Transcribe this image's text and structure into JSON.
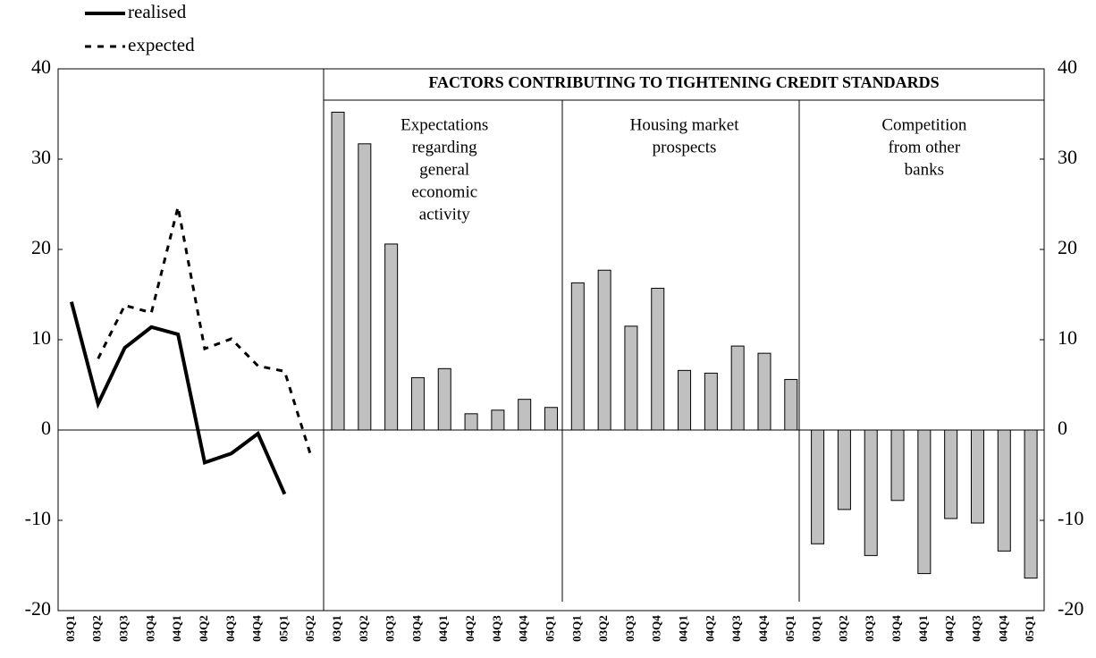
{
  "chart_data": [
    {
      "type": "line",
      "categories": [
        "03Q1",
        "03Q2",
        "03Q3",
        "03Q4",
        "04Q1",
        "04Q2",
        "04Q3",
        "04Q4",
        "05Q1",
        "05Q2"
      ],
      "series": [
        {
          "name": "realised",
          "color": "#000000",
          "dash": false,
          "values": [
            14.2,
            2.9,
            9.1,
            11.4,
            10.6,
            -3.6,
            -2.6,
            -0.4,
            -7.1,
            null
          ]
        },
        {
          "name": "expected",
          "color": "#000000",
          "dash": true,
          "values": [
            null,
            7.9,
            13.8,
            13.0,
            24.7,
            9.0,
            10.1,
            7.1,
            6.5,
            -3.0
          ]
        }
      ],
      "ylim": [
        -20,
        40
      ],
      "yticks": [
        -20,
        -10,
        0,
        10,
        20,
        30,
        40
      ]
    },
    {
      "type": "bar",
      "title": "FACTORS CONTRIBUTING TO TIGHTENING CREDIT STANDARDS",
      "color": "#c0c0c0",
      "panels": [
        {
          "title": [
            "Expectations",
            "regarding",
            "general",
            "economic",
            "activity"
          ],
          "categories": [
            "03Q1",
            "03Q2",
            "03Q3",
            "03Q4",
            "04Q1",
            "04Q2",
            "04Q3",
            "04Q4",
            "05Q1"
          ],
          "values": [
            35.2,
            31.7,
            20.6,
            5.8,
            6.8,
            1.8,
            2.2,
            3.4,
            2.5
          ]
        },
        {
          "title": [
            "Housing market",
            "prospects"
          ],
          "categories": [
            "03Q1",
            "03Q2",
            "03Q3",
            "03Q4",
            "04Q1",
            "04Q2",
            "04Q3",
            "04Q4",
            "05Q1"
          ],
          "values": [
            16.3,
            17.7,
            11.5,
            15.7,
            6.6,
            6.3,
            9.3,
            8.5,
            5.6
          ]
        },
        {
          "title": [
            "Competition",
            "from other",
            "banks"
          ],
          "categories": [
            "03Q1",
            "03Q2",
            "03Q3",
            "03Q4",
            "04Q1",
            "04Q2",
            "04Q3",
            "04Q4",
            "05Q1"
          ],
          "values": [
            -12.6,
            -8.8,
            -13.9,
            -7.8,
            -15.9,
            -9.8,
            -10.3,
            -13.4,
            -16.4
          ]
        }
      ],
      "y2lim": [
        -20,
        40
      ],
      "y2ticks": [
        -20,
        -10,
        0,
        10,
        20,
        30,
        40
      ]
    }
  ]
}
